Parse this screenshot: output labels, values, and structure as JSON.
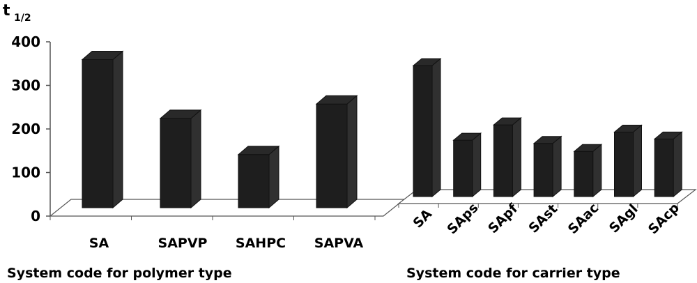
{
  "figure": {
    "ylabel": "t",
    "ylabel_subscript": "1/2"
  },
  "chart_data": [
    {
      "type": "bar",
      "categories": [
        "SA",
        "SAPVP",
        "SAHPC",
        "SAPVA"
      ],
      "values": [
        340,
        205,
        122,
        238
      ],
      "xlabel": "System code for polymer type",
      "ylabel": "t1/2",
      "ylim": [
        0,
        400
      ],
      "yticks": [
        "0",
        "100",
        "200",
        "300",
        "400"
      ],
      "bar_color": "#1e1e1e",
      "grid": false
    },
    {
      "type": "bar",
      "categories": [
        "SA",
        "SAps",
        "SApf",
        "SAst",
        "SAac",
        "SAgl",
        "SAcp"
      ],
      "values": [
        325,
        140,
        178,
        132,
        112,
        160,
        143
      ],
      "xlabel": "System code for carrier type",
      "ylim": [
        0,
        400
      ],
      "bar_color": "#1e1e1e",
      "grid": false
    }
  ]
}
